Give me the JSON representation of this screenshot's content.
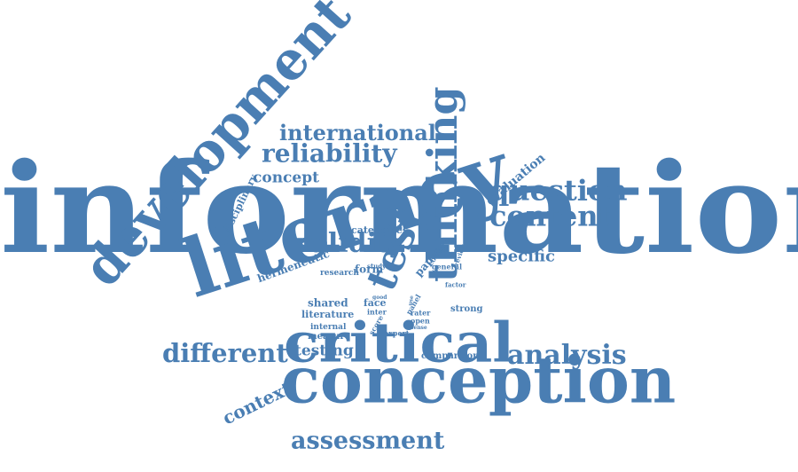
{
  "colors": {
    "word": "#4a7eb3",
    "background": "#ffffff"
  },
  "words": {
    "information": "information",
    "literacy": "literacy",
    "development": "development",
    "conception": "conception",
    "critical": "critical",
    "thinking": "thinking",
    "test": "test",
    "question": "question",
    "content": "content",
    "validity": "validity",
    "reliability": "reliability",
    "international": "international",
    "assessment": "assessment",
    "analysis": "analysis",
    "different": "different",
    "concept": "concept",
    "specific": "specific",
    "context": "context",
    "testing": "testing",
    "evaluation": "evaluation",
    "disciplinary": "disciplinary",
    "hermeneutic": "hermeneutic",
    "categories": "categories",
    "paper": "paper",
    "form": "form",
    "research": "research",
    "study": "study",
    "shared": "shared",
    "literature": "literature",
    "internal": "internal",
    "measure": "measure",
    "face": "face",
    "inter": "inter",
    "score": "score",
    "expert": "expert",
    "rater": "rater",
    "open": "open",
    "panel": "panel",
    "good": "good",
    "item": "item",
    "concern": "concern",
    "general": "general",
    "author": "author",
    "review": "review",
    "sense": "sense",
    "factor": "factor",
    "strong": "strong",
    "comparison": "comparison",
    "use": "use"
  }
}
